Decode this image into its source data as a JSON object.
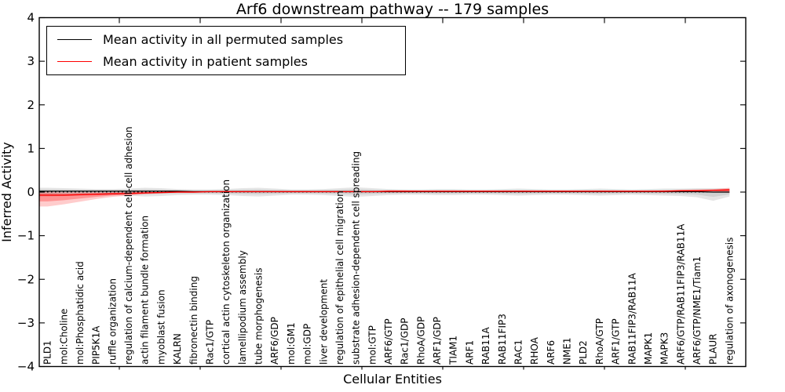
{
  "title": "Arf6 downstream pathway -- 179 samples",
  "axes": {
    "xlabel": "Cellular Entities",
    "ylabel": "Inferred Activity",
    "ytick_labels": [
      "4",
      "3",
      "2",
      "1",
      "0",
      "−1",
      "−2",
      "−3",
      "−4"
    ],
    "ytick_values": [
      4,
      3,
      2,
      1,
      0,
      -1,
      -2,
      -3,
      -4
    ]
  },
  "legend": [
    {
      "label": "Mean activity in all permuted samples",
      "color": "#000000"
    },
    {
      "label": "Mean activity in patient samples",
      "color": "#ff0000"
    }
  ],
  "chart_data": {
    "type": "line",
    "title": "Arf6 downstream pathway -- 179 samples",
    "xlabel": "Cellular Entities",
    "ylabel": "Inferred Activity",
    "ylim": [
      -4,
      4
    ],
    "grid": false,
    "legend_position": "upper left",
    "categories": [
      "PLD1",
      "mol:Choline",
      "mol:Phosphatidic acid",
      "PIP5K1A",
      "ruffle organization",
      "regulation of calcium-dependent cell-cell adhesion",
      "actin filament bundle formation",
      "myoblast fusion",
      "KALRN",
      "fibronectin binding",
      "Rac1/GTP",
      "cortical actin cytoskeleton organization",
      "lamellipodium assembly",
      "tube morphogenesis",
      "ARF6/GDP",
      "mol:GM1",
      "mol:GDP",
      "liver development",
      "regulation of epithelial cell migration",
      "substrate adhesion-dependent cell spreading",
      "mol:GTP",
      "ARF6/GTP",
      "Rac1/GDP",
      "RhoA/GDP",
      "ARF1/GDP",
      "TIAM1",
      "ARF1",
      "RAB11A",
      "RAB11FIP3",
      "RAC1",
      "RHOA",
      "ARF6",
      "NME1",
      "PLD2",
      "RhoA/GTP",
      "ARF1/GTP",
      "RAB11FIP3/RAB11A",
      "MAPK1",
      "MAPK3",
      "ARF6/GTP/RAB11FIP3/RAB11A",
      "ARF6/GTP/NME1/Tiam1",
      "PLAUR",
      "regulation of axonogenesis"
    ],
    "series": [
      {
        "name": "Mean activity in all permuted samples",
        "color": "#000000",
        "band_color": "#999999",
        "values": [
          0.02,
          0.02,
          0.02,
          0.02,
          0.02,
          0.02,
          0.02,
          0.02,
          0.02,
          0.01,
          0.01,
          0.01,
          0.01,
          0.01,
          0.01,
          0.01,
          0.01,
          0.01,
          0.01,
          0.01,
          0.01,
          0.01,
          0.01,
          0.01,
          0.01,
          0.01,
          0.01,
          0.01,
          0.01,
          0.01,
          0.01,
          0.01,
          0.01,
          0.01,
          0.01,
          0.01,
          0.01,
          0.01,
          0.01,
          0.01,
          0.01,
          0.0,
          0.0
        ],
        "band_upper": [
          0.1,
          0.09,
          0.08,
          0.07,
          0.07,
          0.08,
          0.1,
          0.09,
          0.07,
          0.06,
          0.06,
          0.07,
          0.09,
          0.1,
          0.08,
          0.06,
          0.06,
          0.07,
          0.09,
          0.11,
          0.09,
          0.07,
          0.06,
          0.06,
          0.07,
          0.07,
          0.06,
          0.06,
          0.07,
          0.08,
          0.07,
          0.06,
          0.06,
          0.07,
          0.08,
          0.07,
          0.06,
          0.07,
          0.08,
          0.08,
          0.09,
          0.09,
          0.08
        ],
        "band_lower": [
          -0.1,
          -0.09,
          -0.08,
          -0.07,
          -0.07,
          -0.08,
          -0.1,
          -0.09,
          -0.07,
          -0.06,
          -0.06,
          -0.07,
          -0.09,
          -0.1,
          -0.08,
          -0.06,
          -0.06,
          -0.07,
          -0.09,
          -0.11,
          -0.09,
          -0.07,
          -0.06,
          -0.06,
          -0.07,
          -0.07,
          -0.06,
          -0.06,
          -0.07,
          -0.08,
          -0.07,
          -0.06,
          -0.06,
          -0.07,
          -0.08,
          -0.07,
          -0.06,
          -0.07,
          -0.08,
          -0.09,
          -0.12,
          -0.2,
          -0.1
        ]
      },
      {
        "name": "Mean activity in patient samples",
        "color": "#ff0000",
        "band_color": "#ff0000",
        "values": [
          -0.07,
          -0.07,
          -0.06,
          -0.05,
          -0.04,
          -0.03,
          -0.02,
          -0.01,
          0.0,
          0.0,
          0.01,
          0.01,
          0.01,
          0.01,
          0.01,
          0.01,
          0.01,
          0.01,
          0.01,
          0.01,
          0.01,
          0.02,
          0.02,
          0.02,
          0.02,
          0.02,
          0.02,
          0.02,
          0.02,
          0.02,
          0.02,
          0.02,
          0.02,
          0.02,
          0.02,
          0.02,
          0.02,
          0.02,
          0.02,
          0.03,
          0.03,
          0.04,
          0.05
        ],
        "band_upper": [
          0.01,
          0.0,
          0.0,
          0.0,
          0.0,
          0.0,
          0.0,
          0.0,
          0.01,
          0.01,
          0.02,
          0.02,
          0.02,
          0.02,
          0.02,
          0.02,
          0.02,
          0.02,
          0.02,
          0.02,
          0.02,
          0.04,
          0.04,
          0.03,
          0.03,
          0.03,
          0.03,
          0.03,
          0.03,
          0.03,
          0.03,
          0.03,
          0.03,
          0.03,
          0.03,
          0.03,
          0.03,
          0.03,
          0.04,
          0.05,
          0.06,
          0.07,
          0.1
        ],
        "band_lower": [
          -0.33,
          -0.28,
          -0.22,
          -0.16,
          -0.11,
          -0.08,
          -0.05,
          -0.03,
          -0.01,
          -0.01,
          0.0,
          0.0,
          0.0,
          0.0,
          0.0,
          0.0,
          0.0,
          0.0,
          0.0,
          0.0,
          0.0,
          -0.01,
          -0.01,
          0.0,
          0.0,
          0.0,
          0.0,
          0.0,
          0.0,
          0.01,
          0.01,
          0.01,
          0.01,
          0.01,
          0.01,
          0.01,
          0.01,
          0.01,
          0.01,
          0.01,
          0.01,
          0.02,
          -0.02
        ]
      }
    ]
  }
}
